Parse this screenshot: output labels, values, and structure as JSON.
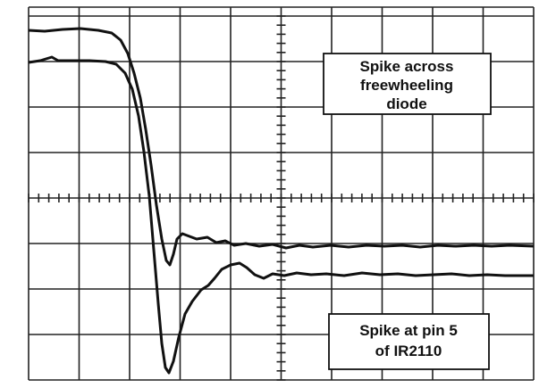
{
  "labels": {
    "freewheeling": {
      "lines": [
        "Spike across",
        "freewheeling",
        "diode"
      ]
    },
    "pin5": {
      "lines": [
        "Spike at pin 5",
        "of IR2110"
      ]
    }
  }
}
